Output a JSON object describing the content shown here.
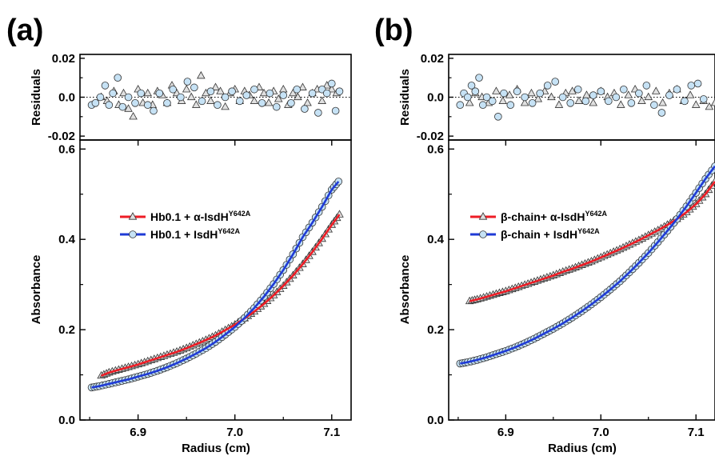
{
  "figure": {
    "panels": [
      {
        "label": "(a)"
      },
      {
        "label": "(b)"
      }
    ]
  },
  "chart_data": [
    {
      "type": "scatter",
      "panel": "(a)",
      "residuals": {
        "ylabel": "Residuals",
        "ylim": [
          -0.022,
          0.022
        ],
        "yticks": [
          "0.02",
          "0.0",
          "-0.02"
        ],
        "ytick_values": [
          0.02,
          0.0,
          -0.02
        ],
        "zero_line": "dotted",
        "series": [
          {
            "marker": "triangle",
            "color": "#e0e0e0",
            "x": [
              6.862,
              6.868,
              6.875,
              6.88,
              6.885,
              6.89,
              6.895,
              6.9,
              6.905,
              6.91,
              6.915,
              6.92,
              6.925,
              6.93,
              6.935,
              6.94,
              6.945,
              6.95,
              6.955,
              6.96,
              6.965,
              6.97,
              6.975,
              6.98,
              6.985,
              6.99,
              6.995,
              7.0,
              7.005,
              7.01,
              7.015,
              7.02,
              7.025,
              7.03,
              7.035,
              7.04,
              7.045,
              7.05,
              7.055,
              7.06,
              7.065,
              7.07,
              7.075,
              7.08,
              7.085,
              7.09,
              7.095,
              7.1,
              7.105
            ],
            "y": [
              0.0,
              -0.002,
              0.003,
              -0.004,
              0.002,
              -0.006,
              -0.01,
              0.004,
              -0.003,
              0.002,
              -0.004,
              0.003,
              0.001,
              -0.003,
              0.006,
              0.002,
              -0.002,
              0.004,
              0.0,
              -0.004,
              0.011,
              0.002,
              -0.002,
              0.005,
              0.003,
              -0.005,
              0.002,
              0.004,
              -0.002,
              0.003,
              0.001,
              -0.002,
              0.005,
              0.002,
              -0.003,
              0.003,
              -0.001,
              0.004,
              -0.004,
              0.002,
              0.0,
              0.005,
              -0.003,
              0.002,
              0.004,
              -0.002,
              0.006,
              0.004,
              0.002
            ]
          },
          {
            "marker": "circle",
            "color": "#c6e2f5",
            "x": [
              6.852,
              6.856,
              6.861,
              6.866,
              6.87,
              6.874,
              6.879,
              6.884,
              6.89,
              6.897,
              6.903,
              6.91,
              6.916,
              6.922,
              6.93,
              6.936,
              6.944,
              6.951,
              6.958,
              6.966,
              6.975,
              6.982,
              6.99,
              6.997,
              7.005,
              7.012,
              7.02,
              7.028,
              7.036,
              7.043,
              7.05,
              7.058,
              7.064,
              7.072,
              7.08,
              7.086,
              7.09,
              7.095,
              7.1,
              7.104,
              7.108
            ],
            "y": [
              -0.004,
              -0.003,
              0.0,
              0.006,
              -0.004,
              0.002,
              0.01,
              -0.005,
              0.0,
              -0.003,
              0.002,
              -0.004,
              -0.007,
              0.002,
              -0.003,
              0.004,
              0.0,
              0.008,
              0.005,
              -0.002,
              0.003,
              -0.004,
              0.0,
              0.003,
              -0.002,
              0.001,
              0.004,
              -0.003,
              0.002,
              -0.005,
              0.001,
              -0.003,
              0.004,
              -0.006,
              0.002,
              -0.008,
              0.004,
              0.002,
              0.007,
              -0.007,
              0.003
            ]
          }
        ]
      },
      "main": {
        "xlabel": "Radius (cm)",
        "ylabel": "Absorbance",
        "xlim": [
          6.84,
          7.12
        ],
        "ylim": [
          0.0,
          0.62
        ],
        "xticks": [
          "6.9",
          "7.0",
          "7.1"
        ],
        "xtick_values": [
          6.9,
          7.0,
          7.1
        ],
        "yticks": [
          "0.0",
          "0.2",
          "0.4",
          "0.6"
        ],
        "ytick_values": [
          0.0,
          0.2,
          0.4,
          0.6
        ],
        "legend": {
          "position": "upper-center"
        },
        "series": [
          {
            "legend_prefix": "Hb0.1 + α-IsdH",
            "legend_sup": "Y642A",
            "line_color": "#ee1c25",
            "marker": "triangle",
            "marker_fill": "#e0e0e0",
            "x": [
              6.862,
              6.87,
              6.88,
              6.89,
              6.9,
              6.91,
              6.92,
              6.93,
              6.94,
              6.95,
              6.96,
              6.97,
              6.98,
              6.99,
              7.0,
              7.01,
              7.02,
              7.03,
              7.04,
              7.05,
              7.06,
              7.07,
              7.08,
              7.09,
              7.1,
              7.108
            ],
            "y": [
              0.098,
              0.105,
              0.111,
              0.117,
              0.123,
              0.13,
              0.137,
              0.144,
              0.151,
              0.159,
              0.168,
              0.177,
              0.187,
              0.199,
              0.211,
              0.225,
              0.24,
              0.257,
              0.276,
              0.297,
              0.32,
              0.345,
              0.372,
              0.401,
              0.432,
              0.455
            ]
          },
          {
            "legend_prefix": "Hb0.1 + IsdH",
            "legend_sup": "Y642A",
            "line_color": "#1f3bd6",
            "marker": "circle",
            "marker_fill": "#c6e2f5",
            "x": [
              6.852,
              6.86,
              6.87,
              6.88,
              6.89,
              6.9,
              6.91,
              6.92,
              6.93,
              6.94,
              6.95,
              6.96,
              6.97,
              6.98,
              6.99,
              7.0,
              7.01,
              7.02,
              7.03,
              7.04,
              7.05,
              7.06,
              7.07,
              7.08,
              7.09,
              7.1,
              7.107
            ],
            "y": [
              0.072,
              0.075,
              0.08,
              0.085,
              0.09,
              0.096,
              0.102,
              0.109,
              0.117,
              0.126,
              0.136,
              0.147,
              0.159,
              0.173,
              0.189,
              0.206,
              0.226,
              0.248,
              0.273,
              0.301,
              0.332,
              0.367,
              0.405,
              0.437,
              0.472,
              0.51,
              0.528
            ]
          }
        ]
      }
    },
    {
      "type": "scatter",
      "panel": "(b)",
      "residuals": {
        "ylabel": "Residuals",
        "ylim": [
          -0.022,
          0.022
        ],
        "yticks": [
          "0.02",
          "0.0",
          "-0.02"
        ],
        "ytick_values": [
          0.02,
          0.0,
          -0.02
        ],
        "zero_line": "dotted",
        "series": [
          {
            "marker": "triangle",
            "color": "#e0e0e0",
            "x": [
              6.862,
              6.868,
              6.875,
              6.882,
              6.89,
              6.897,
              6.904,
              6.912,
              6.92,
              6.927,
              6.934,
              6.941,
              6.948,
              6.956,
              6.963,
              6.97,
              6.977,
              6.985,
              6.992,
              7.0,
              7.007,
              7.014,
              7.021,
              7.029,
              7.036,
              7.043,
              7.05,
              7.058,
              7.065,
              7.072,
              7.08,
              7.087,
              7.094,
              7.1,
              7.108,
              7.114,
              7.12
            ],
            "y": [
              -0.003,
              0.002,
              0.0,
              -0.003,
              0.003,
              -0.002,
              0.001,
              0.004,
              -0.003,
              0.002,
              -0.001,
              0.003,
              0.0,
              -0.004,
              0.002,
              0.003,
              -0.002,
              0.001,
              -0.003,
              0.003,
              0.0,
              0.002,
              -0.004,
              0.001,
              0.004,
              -0.002,
              0.0,
              0.003,
              -0.003,
              0.002,
              0.004,
              -0.002,
              0.001,
              -0.004,
              -0.002,
              -0.005,
              -0.003
            ]
          },
          {
            "marker": "circle",
            "color": "#c6e2f5",
            "x": [
              6.852,
              6.856,
              6.86,
              6.864,
              6.868,
              6.872,
              6.876,
              6.88,
              6.886,
              6.892,
              6.898,
              6.905,
              6.912,
              6.92,
              6.928,
              6.936,
              6.944,
              6.952,
              6.96,
              6.968,
              6.976,
              6.984,
              6.992,
              7.0,
              7.008,
              7.016,
              7.024,
              7.032,
              7.04,
              7.048,
              7.056,
              7.064,
              7.072,
              7.08,
              7.088,
              7.095,
              7.102,
              7.108
            ],
            "y": [
              -0.004,
              0.002,
              0.0,
              0.006,
              0.003,
              0.01,
              -0.004,
              0.0,
              -0.002,
              -0.01,
              0.002,
              -0.004,
              0.003,
              0.0,
              -0.003,
              0.002,
              0.006,
              0.008,
              0.0,
              -0.003,
              0.004,
              -0.002,
              0.001,
              0.003,
              -0.002,
              0.0,
              0.004,
              -0.003,
              0.002,
              0.006,
              -0.004,
              -0.008,
              0.001,
              0.004,
              -0.002,
              0.006,
              0.007,
              -0.001
            ]
          }
        ]
      },
      "main": {
        "xlabel": "Radius (cm)",
        "ylabel": "Absorbance",
        "xlim": [
          6.84,
          7.12
        ],
        "ylim": [
          0.0,
          0.62
        ],
        "xticks": [
          "6.9",
          "7.0",
          "7.1"
        ],
        "xtick_values": [
          6.9,
          7.0,
          7.1
        ],
        "yticks": [
          "0.0",
          "0.2",
          "0.4",
          "0.6"
        ],
        "ytick_values": [
          0.0,
          0.2,
          0.4,
          0.6
        ],
        "legend": {
          "position": "upper-left"
        },
        "series": [
          {
            "legend_prefix": "β-chain+ α-IsdH",
            "legend_sup": "Y642A",
            "line_color": "#ee1c25",
            "marker": "triangle",
            "marker_fill": "#e0e0e0",
            "x": [
              6.862,
              6.87,
              6.88,
              6.89,
              6.9,
              6.91,
              6.92,
              6.93,
              6.94,
              6.95,
              6.96,
              6.97,
              6.98,
              6.99,
              7.0,
              7.01,
              7.02,
              7.03,
              7.04,
              7.05,
              7.06,
              7.07,
              7.08,
              7.09,
              7.1,
              7.11,
              7.12
            ],
            "y": [
              0.263,
              0.267,
              0.273,
              0.279,
              0.285,
              0.292,
              0.299,
              0.306,
              0.313,
              0.32,
              0.328,
              0.335,
              0.343,
              0.351,
              0.36,
              0.369,
              0.378,
              0.388,
              0.398,
              0.409,
              0.42,
              0.432,
              0.445,
              0.46,
              0.478,
              0.5,
              0.528
            ]
          },
          {
            "legend_prefix": "β-chain + IsdH",
            "legend_sup": "Y642A",
            "line_color": "#1f3bd6",
            "marker": "circle",
            "marker_fill": "#c6e2f5",
            "x": [
              6.852,
              6.86,
              6.87,
              6.88,
              6.89,
              6.9,
              6.91,
              6.92,
              6.93,
              6.94,
              6.95,
              6.96,
              6.97,
              6.98,
              6.99,
              7.0,
              7.01,
              7.02,
              7.03,
              7.04,
              7.05,
              7.06,
              7.07,
              7.08,
              7.09,
              7.1,
              7.11,
              7.12
            ],
            "y": [
              0.125,
              0.128,
              0.133,
              0.139,
              0.146,
              0.153,
              0.161,
              0.17,
              0.18,
              0.191,
              0.202,
              0.214,
              0.227,
              0.241,
              0.256,
              0.272,
              0.289,
              0.307,
              0.327,
              0.348,
              0.37,
              0.394,
              0.419,
              0.445,
              0.473,
              0.503,
              0.534,
              0.562
            ]
          }
        ]
      }
    }
  ]
}
